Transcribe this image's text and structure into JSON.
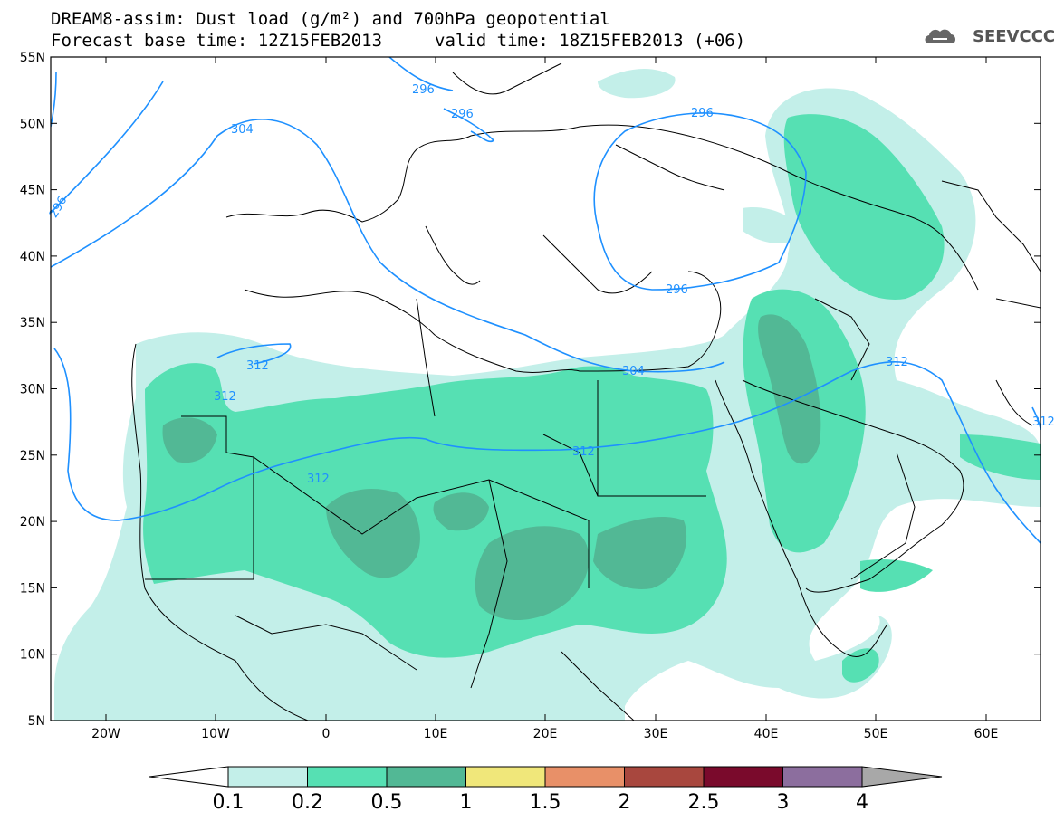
{
  "title": {
    "line1": "DREAM8-assim: Dust load (g/m²) and 700hPa geopotential",
    "line2": "Forecast base time: 12Z15FEB2013",
    "valid": "valid time: 18Z15FEB2013 (+06)"
  },
  "logo": {
    "text": "SEEVCCC",
    "icon": "cloud-icon"
  },
  "axes": {
    "lon_labels": [
      "20W",
      "10W",
      "0",
      "10E",
      "20E",
      "30E",
      "40E",
      "50E",
      "60E"
    ],
    "lat_labels": [
      "55N",
      "50N",
      "45N",
      "40N",
      "35N",
      "30N",
      "25N",
      "20N",
      "15N",
      "10N",
      "5N"
    ]
  },
  "contour_labels": [
    "296",
    "296",
    "296",
    "296",
    "296",
    "304",
    "304",
    "312",
    "312",
    "312",
    "312",
    "312",
    "312"
  ],
  "colorbar": {
    "labels": [
      "0.1",
      "0.2",
      "0.5",
      "1",
      "1.5",
      "2",
      "2.5",
      "3",
      "4"
    ],
    "colors": [
      "#ffffff",
      "#c3efe9",
      "#56e0b3",
      "#52b895",
      "#f0e77a",
      "#e89068",
      "#a8473e",
      "#7a0a2c",
      "#8c6e9e",
      "#a8a8a8"
    ]
  }
}
